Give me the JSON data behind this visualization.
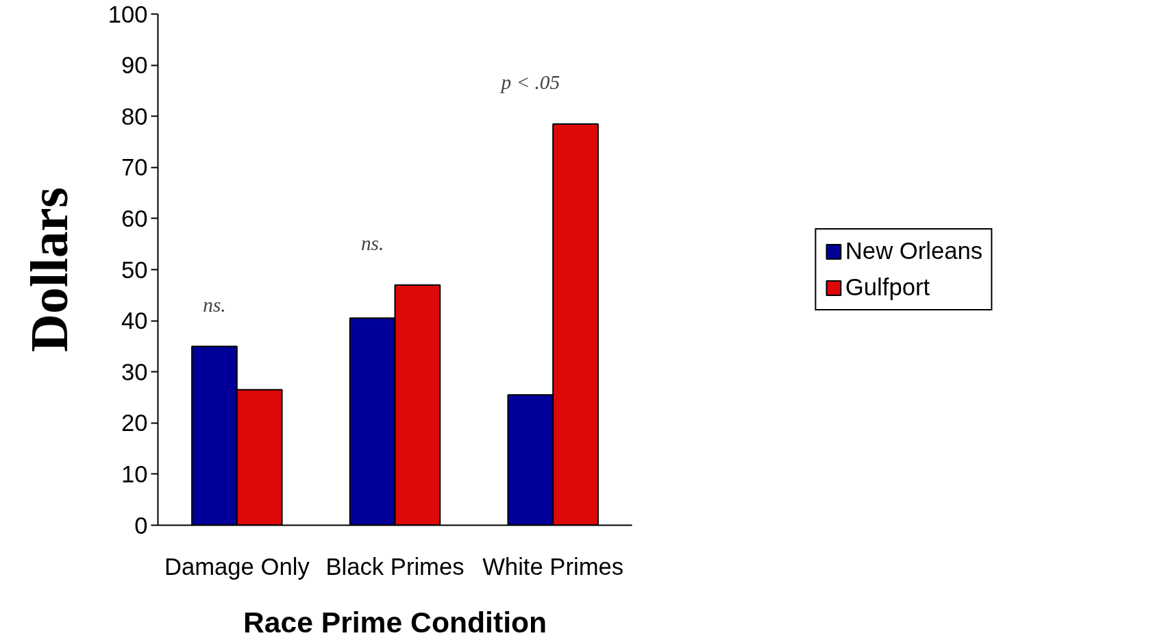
{
  "chart_data": {
    "type": "bar",
    "xlabel": "Race Prime Condition",
    "ylabel": "Dollars",
    "categories": [
      "Damage Only",
      "Black Primes",
      "White Primes"
    ],
    "series": [
      {
        "name": "New Orleans",
        "color": "#000099",
        "values": [
          35,
          40.5,
          25.5
        ]
      },
      {
        "name": "Gulfport",
        "color": "#dd0808",
        "values": [
          26.5,
          47,
          78.5
        ]
      }
    ],
    "ylim": [
      0,
      100
    ],
    "yticks": [
      0,
      10,
      20,
      30,
      40,
      50,
      60,
      70,
      80,
      90,
      100
    ],
    "grid": false,
    "legend": "right",
    "annotations": [
      "ns.",
      "ns.",
      "p < .05"
    ]
  }
}
